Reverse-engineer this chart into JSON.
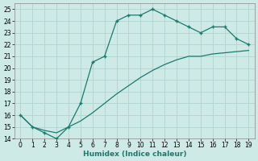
{
  "xlabel": "Humidex (Indice chaleur)",
  "bg_color": "#ceeae7",
  "line_color": "#1a7a6e",
  "grid_color": "#b0d4d0",
  "x_upper": [
    0,
    1,
    2,
    3,
    4,
    5,
    6,
    7,
    8,
    9,
    10,
    11,
    12,
    13,
    14,
    15,
    16,
    17,
    18,
    19
  ],
  "y_upper": [
    16,
    15,
    14.5,
    14,
    15,
    17,
    20.5,
    21,
    24,
    24.5,
    24.5,
    25,
    24.5,
    24,
    23.5,
    23,
    23.5,
    23.5,
    22.5,
    22
  ],
  "x_lower": [
    0,
    1,
    2,
    3,
    4,
    5,
    6,
    7,
    8,
    9,
    10,
    11,
    12,
    13,
    14,
    15,
    16,
    17,
    18,
    19
  ],
  "y_lower": [
    16,
    15,
    14.7,
    14.5,
    15,
    15.5,
    16.2,
    17.0,
    17.8,
    18.5,
    19.2,
    19.8,
    20.3,
    20.7,
    21.0,
    21.0,
    21.2,
    21.3,
    21.4,
    21.5
  ],
  "xlim": [
    -0.5,
    19.5
  ],
  "ylim": [
    14,
    25.5
  ],
  "yticks": [
    14,
    15,
    16,
    17,
    18,
    19,
    20,
    21,
    22,
    23,
    24,
    25
  ],
  "xticks": [
    0,
    1,
    2,
    3,
    4,
    5,
    6,
    7,
    8,
    9,
    10,
    11,
    12,
    13,
    14,
    15,
    16,
    17,
    18,
    19
  ],
  "tick_fontsize": 5.5,
  "xlabel_fontsize": 6.5
}
